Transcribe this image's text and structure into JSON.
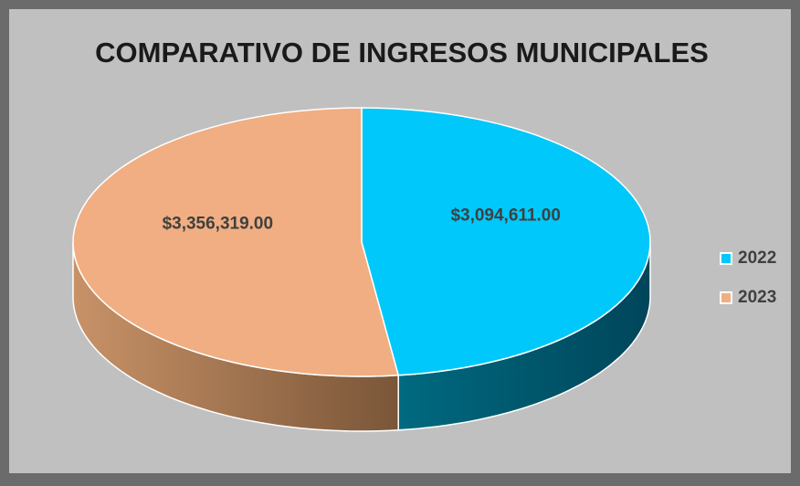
{
  "chart_data": {
    "type": "pie",
    "title": "COMPARATIVO DE INGRESOS MUNICIPALES",
    "categories": [
      "2022",
      "2023"
    ],
    "values": [
      3094611,
      3356319
    ],
    "value_labels": [
      "$3,094,611.00",
      "$3,356,319.00"
    ],
    "colors": [
      "#00c8fa",
      "#f0ae82"
    ],
    "legend": "right"
  }
}
